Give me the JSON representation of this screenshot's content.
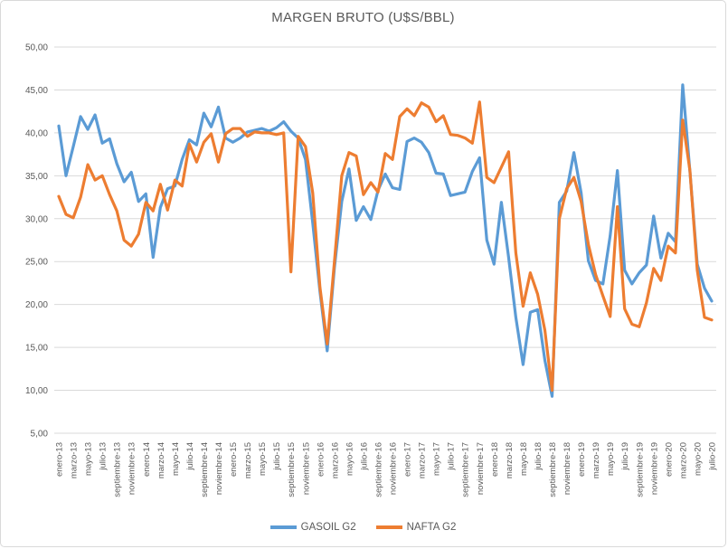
{
  "chart": {
    "title": "MARGEN BRUTO (U$S/BBL)"
  },
  "legend": {
    "items": [
      {
        "label": "GASOIL G2",
        "color": "#5b9bd5"
      },
      {
        "label": "NAFTA G2",
        "color": "#ed7d31"
      }
    ]
  },
  "chart_data": {
    "type": "line",
    "title": "MARGEN BRUTO (U$S/BBL)",
    "xlabel": "",
    "ylabel": "",
    "ylim": [
      5,
      50
    ],
    "ytick_step": 5,
    "ytick_labels": [
      "50,00",
      "45,00",
      "40,00",
      "35,00",
      "30,00",
      "25,00",
      "20,00",
      "15,00",
      "10,00",
      "5,00"
    ],
    "grid": "horizontal",
    "legend_position": "bottom",
    "n_points": 91,
    "x_start": "enero-13",
    "x_end": "julio-20",
    "x_labels_shown_every": 2,
    "x_labels": [
      "enero-13",
      "marzo-13",
      "mayo-13",
      "julio-13",
      "septiembre-13",
      "noviembre-13",
      "enero-14",
      "marzo-14",
      "mayo-14",
      "julio-14",
      "septiembre-14",
      "noviembre-14",
      "enero-15",
      "marzo-15",
      "mayo-15",
      "julio-15",
      "septiembre-15",
      "noviembre-15",
      "enero-16",
      "marzo-16",
      "mayo-16",
      "julio-16",
      "septiembre-16",
      "noviembre-16",
      "enero-17",
      "marzo-17",
      "mayo-17",
      "julio-17",
      "septiembre-17",
      "noviembre-17",
      "enero-18",
      "marzo-18",
      "mayo-18",
      "julio-18",
      "septiembre-18",
      "noviembre-18",
      "enero-19",
      "marzo-19",
      "mayo-19",
      "julio-19",
      "septiembre-19",
      "noviembre-19",
      "enero-20",
      "marzo-20",
      "mayo-20",
      "julio-20"
    ],
    "series": [
      {
        "name": "GASOIL G2",
        "color": "#5b9bd5",
        "values": [
          40.8,
          35.0,
          38.4,
          41.9,
          40.4,
          42.1,
          38.8,
          39.3,
          36.4,
          34.3,
          35.4,
          32.0,
          32.9,
          25.5,
          31.3,
          33.5,
          33.8,
          36.9,
          39.2,
          38.6,
          42.3,
          40.7,
          43.0,
          39.4,
          38.9,
          39.4,
          40.1,
          40.3,
          40.5,
          40.2,
          40.6,
          41.3,
          40.2,
          39.4,
          36.9,
          29.5,
          21.5,
          14.6,
          24.3,
          32.0,
          35.8,
          29.8,
          31.4,
          29.9,
          33.3,
          35.2,
          33.6,
          33.4,
          39.0,
          39.4,
          38.9,
          37.7,
          35.3,
          35.2,
          32.7,
          32.9,
          33.1,
          35.5,
          37.1,
          27.5,
          24.7,
          31.9,
          25.5,
          18.5,
          13.0,
          19.1,
          19.4,
          13.5,
          9.3,
          31.9,
          33.2,
          37.7,
          33.0,
          25.1,
          22.8,
          22.4,
          28.0,
          35.6,
          24.0,
          22.4,
          23.7,
          24.6,
          30.3,
          25.4,
          28.3,
          27.3,
          45.6,
          35.5,
          24.7,
          21.9,
          20.4
        ]
      },
      {
        "name": "NAFTA G2",
        "color": "#ed7d31",
        "values": [
          32.6,
          30.5,
          30.1,
          32.5,
          36.3,
          34.5,
          35.0,
          32.8,
          30.9,
          27.5,
          26.8,
          28.2,
          31.9,
          30.9,
          34.0,
          31.0,
          34.5,
          33.8,
          38.7,
          36.6,
          38.9,
          39.9,
          36.6,
          39.9,
          40.5,
          40.5,
          39.6,
          40.1,
          40.0,
          40.0,
          39.8,
          40.0,
          23.8,
          39.6,
          38.4,
          33.0,
          22.0,
          15.4,
          25.0,
          35.0,
          37.7,
          37.3,
          32.8,
          34.2,
          33.1,
          37.6,
          36.9,
          41.9,
          42.8,
          42.0,
          43.5,
          43.0,
          41.3,
          42.0,
          39.8,
          39.7,
          39.4,
          38.8,
          43.6,
          34.8,
          34.2,
          36.0,
          37.8,
          26.0,
          19.8,
          23.7,
          21.2,
          17.0,
          10.0,
          30.0,
          33.5,
          34.8,
          32.0,
          27.0,
          23.5,
          21.0,
          18.6,
          31.4,
          19.5,
          17.7,
          17.4,
          20.2,
          24.2,
          22.8,
          26.8,
          26.0,
          41.5,
          35.6,
          24.0,
          18.5,
          18.2
        ]
      }
    ],
    "style": {
      "gridline_color": "#d9d9d9",
      "tick_label_color": "#595959",
      "title_color": "#595959",
      "line_width": 3.2
    }
  }
}
